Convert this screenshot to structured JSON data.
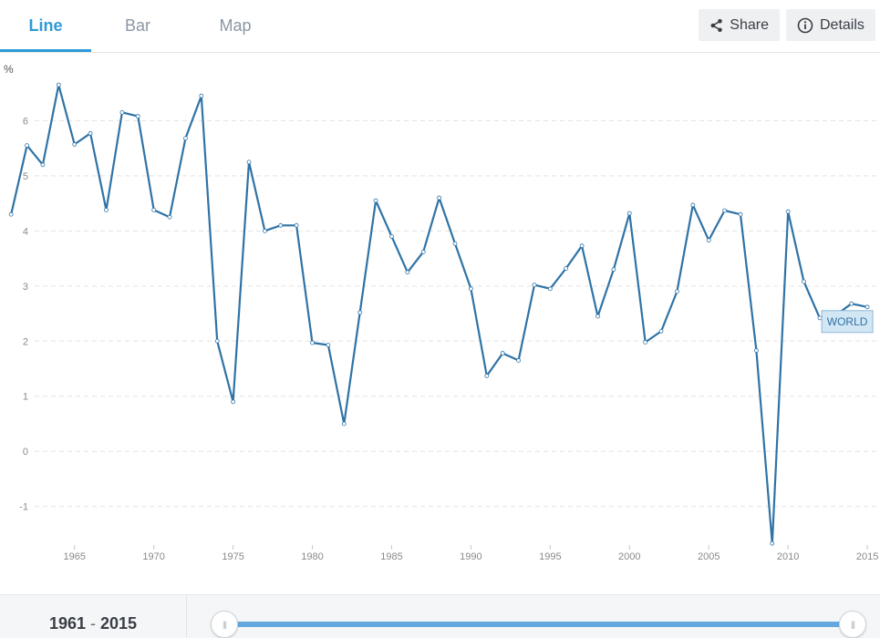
{
  "tabs": [
    {
      "label": "Line",
      "active": true
    },
    {
      "label": "Bar",
      "active": false
    },
    {
      "label": "Map",
      "active": false
    }
  ],
  "actions": {
    "share_label": "Share",
    "details_label": "Details",
    "share_icon": "share-icon",
    "details_icon": "info-icon"
  },
  "range": {
    "start": "1961",
    "separator": "-",
    "end": "2015",
    "handle_glyph": "|||"
  },
  "colors": {
    "accent": "#2e9ad8",
    "line": "#2f73a6",
    "slider": "#64a8df",
    "label_bg": "#d2e6f4"
  },
  "chart_data": {
    "type": "line",
    "ylabel": "%",
    "ylim": [
      -1.7,
      6.9
    ],
    "xlim": [
      1960.3,
      2015.8
    ],
    "yticks": [
      "-1",
      "0",
      "1",
      "2",
      "3",
      "4",
      "5",
      "6"
    ],
    "xticks": [
      "1965",
      "1970",
      "1975",
      "1980",
      "1985",
      "1990",
      "1995",
      "2000",
      "2005",
      "2010",
      "2015"
    ],
    "grid": "horizontal-dashed",
    "series": [
      {
        "name": "WORLD",
        "x": [
          1961,
          1962,
          1963,
          1964,
          1965,
          1966,
          1967,
          1968,
          1969,
          1970,
          1971,
          1972,
          1973,
          1974,
          1975,
          1976,
          1977,
          1978,
          1979,
          1980,
          1981,
          1982,
          1983,
          1984,
          1985,
          1986,
          1987,
          1988,
          1989,
          1990,
          1991,
          1992,
          1993,
          1994,
          1995,
          1996,
          1997,
          1998,
          1999,
          2000,
          2001,
          2002,
          2003,
          2004,
          2005,
          2006,
          2007,
          2008,
          2009,
          2010,
          2011,
          2012,
          2013,
          2014,
          2015
        ],
        "values": [
          4.3,
          5.55,
          5.2,
          6.65,
          5.57,
          5.77,
          4.38,
          6.15,
          6.08,
          4.38,
          4.25,
          5.68,
          6.45,
          2.0,
          0.9,
          5.25,
          4.0,
          4.1,
          4.1,
          1.97,
          1.93,
          0.5,
          2.52,
          4.55,
          3.9,
          3.25,
          3.62,
          4.6,
          3.77,
          2.95,
          1.37,
          1.78,
          1.65,
          3.02,
          2.95,
          3.32,
          3.73,
          2.45,
          3.3,
          4.32,
          1.98,
          2.18,
          2.9,
          4.47,
          3.83,
          4.37,
          4.3,
          1.83,
          -1.67,
          4.35,
          3.08,
          2.42,
          2.47,
          2.68,
          2.62
        ]
      }
    ]
  }
}
